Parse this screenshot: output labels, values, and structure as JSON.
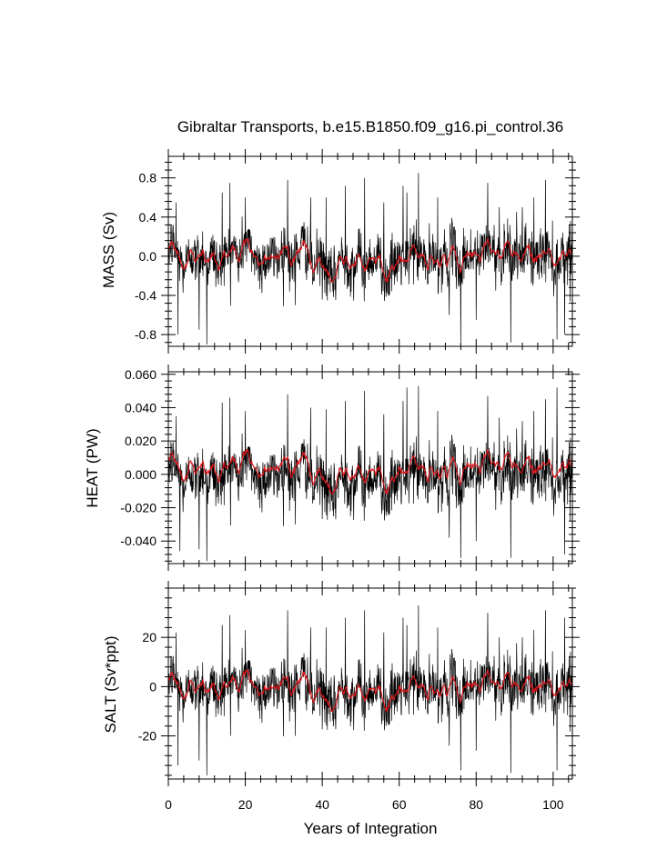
{
  "title": "Gibraltar Transports, b.e15.B1850.f09_g16.pi_control.36",
  "xlabel": "Years of Integration",
  "x_ticks": [
    0,
    20,
    40,
    60,
    80,
    100
  ],
  "colors": {
    "raw": "#000000",
    "smooth": "#e0151b"
  },
  "chart_data": [
    {
      "type": "line",
      "ylabel": "MASS (Sv)",
      "xlim": [
        0,
        105
      ],
      "ylim": [
        -0.92,
        1.02
      ],
      "yticks": [
        -0.8,
        -0.4,
        0.0,
        0.4,
        0.8
      ],
      "tick_labels": [
        "-0.8",
        "-0.4",
        "0.0",
        "0.4",
        "0.8"
      ],
      "grid": false,
      "series": [
        {
          "role": "monthly",
          "color": "#000000",
          "noise_sd": 0.14,
          "amp": 1.0,
          "samples": 1260,
          "peaks": [
            [
              2,
              0.55
            ],
            [
              2.5,
              -0.8
            ],
            [
              8,
              -0.75
            ],
            [
              10,
              -0.9
            ],
            [
              14,
              0.65
            ],
            [
              16,
              0.75
            ],
            [
              20,
              0.6
            ],
            [
              31,
              0.78
            ],
            [
              33,
              -0.5
            ],
            [
              37,
              0.6
            ],
            [
              41,
              0.6
            ],
            [
              46,
              0.72
            ],
            [
              51,
              0.8
            ],
            [
              56,
              0.55
            ],
            [
              61,
              0.72
            ],
            [
              62,
              0.65
            ],
            [
              65,
              0.85
            ],
            [
              70,
              0.6
            ],
            [
              73,
              -0.6
            ],
            [
              76,
              -0.88
            ],
            [
              80,
              -0.65
            ],
            [
              83,
              0.75
            ],
            [
              86,
              0.5
            ],
            [
              89,
              -0.88
            ],
            [
              92,
              0.5
            ],
            [
              95,
              0.6
            ],
            [
              98,
              0.78
            ],
            [
              101,
              -0.85
            ],
            [
              103,
              -0.8
            ]
          ]
        },
        {
          "role": "smoothed",
          "color": "#e0151b",
          "amp": 1.0
        }
      ]
    },
    {
      "type": "line",
      "ylabel": "HEAT (PW)",
      "xlim": [
        0,
        105
      ],
      "ylim": [
        -0.0535,
        0.0615
      ],
      "yticks": [
        -0.04,
        -0.02,
        0.0,
        0.02,
        0.04,
        0.06
      ],
      "tick_labels": [
        "-0.040",
        "-0.020",
        "0.000",
        "0.020",
        "0.040",
        "0.060"
      ],
      "grid": false,
      "series": [
        {
          "role": "monthly",
          "color": "#000000",
          "noise_sd": 0.0085,
          "amp": 0.06,
          "samples": 1260,
          "peaks": [
            [
              2,
              0.035
            ],
            [
              3,
              -0.046
            ],
            [
              8,
              -0.045
            ],
            [
              10,
              -0.052
            ],
            [
              14,
              0.043
            ],
            [
              16,
              0.046
            ],
            [
              20,
              0.038
            ],
            [
              31,
              0.048
            ],
            [
              33,
              -0.03
            ],
            [
              37,
              0.04
            ],
            [
              41,
              0.039
            ],
            [
              46,
              0.044
            ],
            [
              51,
              0.05
            ],
            [
              56,
              0.036
            ],
            [
              61,
              0.044
            ],
            [
              62,
              0.052
            ],
            [
              65,
              0.053
            ],
            [
              70,
              0.038
            ],
            [
              73,
              -0.038
            ],
            [
              76,
              -0.05
            ],
            [
              80,
              -0.04
            ],
            [
              83,
              0.047
            ],
            [
              86,
              0.034
            ],
            [
              89,
              -0.05
            ],
            [
              92,
              0.032
            ],
            [
              95,
              0.038
            ],
            [
              98,
              0.045
            ],
            [
              101,
              0.052
            ],
            [
              103,
              -0.048
            ]
          ]
        },
        {
          "role": "smoothed",
          "color": "#e0151b",
          "amp": 0.06,
          "offset": 0.004
        }
      ]
    },
    {
      "type": "line",
      "ylabel": "SALT (Sv*ppt)",
      "xlim": [
        0,
        105
      ],
      "ylim": [
        -37.5,
        40
      ],
      "yticks": [
        -20,
        0,
        20
      ],
      "tick_labels": [
        "-20",
        "0",
        "20"
      ],
      "grid": false,
      "series": [
        {
          "role": "monthly",
          "color": "#000000",
          "noise_sd": 5.5,
          "amp": 38,
          "samples": 1260,
          "peaks": [
            [
              2,
              22
            ],
            [
              2.5,
              -32
            ],
            [
              8,
              -30
            ],
            [
              10,
              -36
            ],
            [
              14,
              25
            ],
            [
              16,
              29
            ],
            [
              20,
              23
            ],
            [
              31,
              31
            ],
            [
              33,
              -20
            ],
            [
              37,
              24
            ],
            [
              41,
              24
            ],
            [
              46,
              28
            ],
            [
              51,
              31
            ],
            [
              56,
              22
            ],
            [
              61,
              28
            ],
            [
              62,
              25
            ],
            [
              65,
              33
            ],
            [
              70,
              24
            ],
            [
              73,
              -24
            ],
            [
              76,
              -34
            ],
            [
              80,
              -26
            ],
            [
              83,
              30
            ],
            [
              86,
              20
            ],
            [
              89,
              -35
            ],
            [
              92,
              20
            ],
            [
              95,
              23
            ],
            [
              98,
              31
            ],
            [
              101,
              -34
            ],
            [
              103,
              28
            ]
          ]
        },
        {
          "role": "smoothed",
          "color": "#e0151b",
          "amp": 38
        }
      ]
    }
  ]
}
